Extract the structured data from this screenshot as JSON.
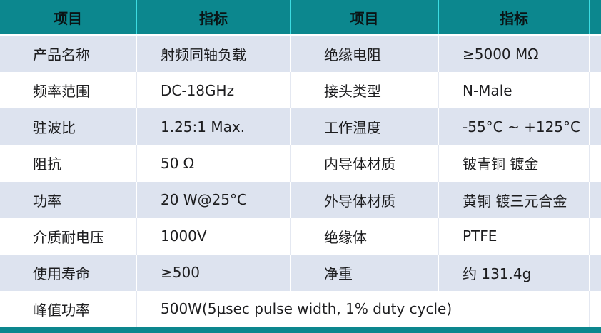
{
  "colors": {
    "header_teal": "#0c878e",
    "header_divider_cyan": "#3cdce2",
    "light_row": "#dde3ef",
    "white_row": "#ffffff",
    "text": "#1d1d1f"
  },
  "header": {
    "col1": "项目",
    "col2": "指标",
    "col3": "项目",
    "col4": "指标"
  },
  "rows": [
    {
      "item1": "产品名称",
      "value1": "射频同轴负载",
      "item2": "绝缘电阻",
      "value2": "≥5000 MΩ"
    },
    {
      "item1": "频率范围",
      "value1": "DC-18GHz",
      "item2": "接头类型",
      "value2": "N-Male"
    },
    {
      "item1": "驻波比",
      "value1": "1.25:1 Max.",
      "item2": "工作温度",
      "value2": "-55°C ~ +125°C"
    },
    {
      "item1": "阻抗",
      "value1": "50 Ω",
      "item2": "内导体材质",
      "value2": "铍青铜 镀金"
    },
    {
      "item1": "功率",
      "value1": "20 W@25°C",
      "item2": "外导体材质",
      "value2": "黄铜 镀三元合金"
    },
    {
      "item1": "介质耐电压",
      "value1": "1000V",
      "item2": "绝缘体",
      "value2": "PTFE"
    },
    {
      "item1": "使用寿命",
      "value1": "≥500",
      "item2": "净重",
      "value2": "约 131.4g"
    },
    {
      "item1": "峰值功率",
      "value1": "500W(5μsec pulse width, 1% duty cycle)"
    }
  ]
}
